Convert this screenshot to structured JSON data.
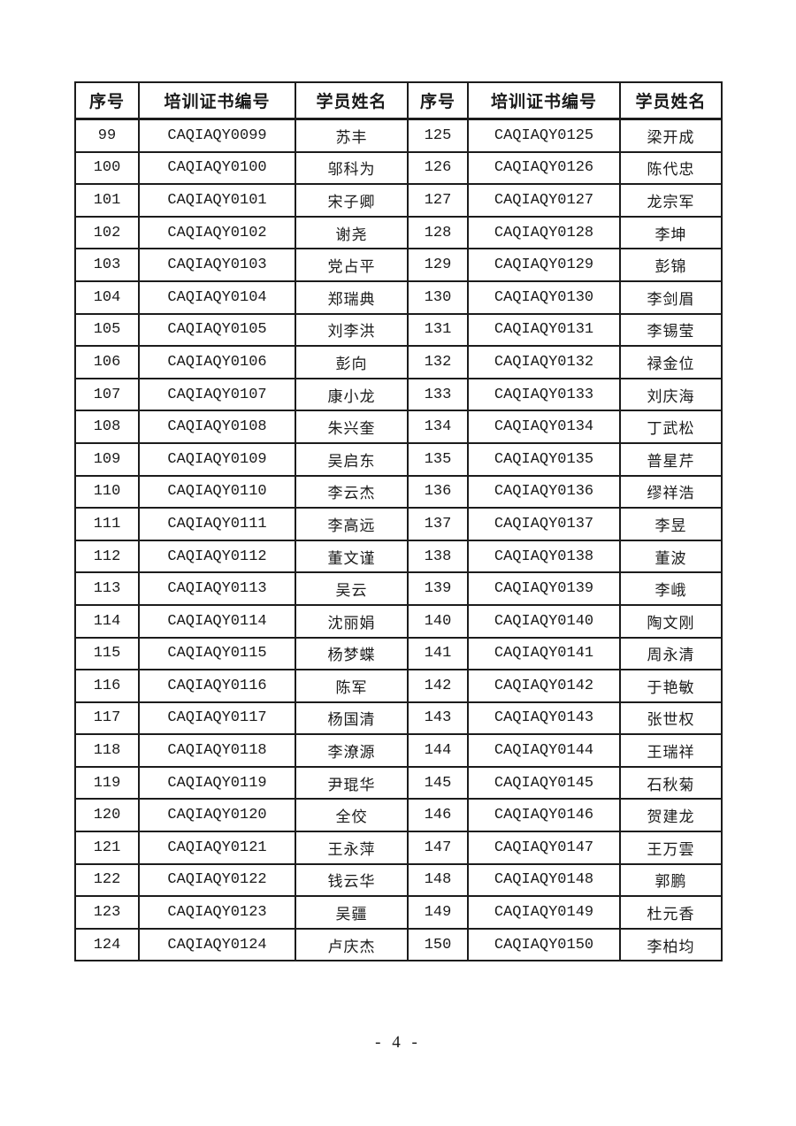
{
  "page": {
    "footer_label": "- 4 -"
  },
  "table": {
    "headers": [
      "序号",
      "培训证书编号",
      "学员姓名",
      "序号",
      "培训证书编号",
      "学员姓名"
    ],
    "column_kinds": [
      "serial",
      "cert",
      "name",
      "serial",
      "cert",
      "name"
    ],
    "rows": [
      [
        "99",
        "CAQIAQY0099",
        "苏丰",
        "125",
        "CAQIAQY0125",
        "梁开成"
      ],
      [
        "100",
        "CAQIAQY0100",
        "邬科为",
        "126",
        "CAQIAQY0126",
        "陈代忠"
      ],
      [
        "101",
        "CAQIAQY0101",
        "宋子卿",
        "127",
        "CAQIAQY0127",
        "龙宗军"
      ],
      [
        "102",
        "CAQIAQY0102",
        "谢尧",
        "128",
        "CAQIAQY0128",
        "李坤"
      ],
      [
        "103",
        "CAQIAQY0103",
        "党占平",
        "129",
        "CAQIAQY0129",
        "彭锦"
      ],
      [
        "104",
        "CAQIAQY0104",
        "郑瑞典",
        "130",
        "CAQIAQY0130",
        "李剑眉"
      ],
      [
        "105",
        "CAQIAQY0105",
        "刘李洪",
        "131",
        "CAQIAQY0131",
        "李锡莹"
      ],
      [
        "106",
        "CAQIAQY0106",
        "彭向",
        "132",
        "CAQIAQY0132",
        "禄金位"
      ],
      [
        "107",
        "CAQIAQY0107",
        "康小龙",
        "133",
        "CAQIAQY0133",
        "刘庆海"
      ],
      [
        "108",
        "CAQIAQY0108",
        "朱兴奎",
        "134",
        "CAQIAQY0134",
        "丁武松"
      ],
      [
        "109",
        "CAQIAQY0109",
        "吴启东",
        "135",
        "CAQIAQY0135",
        "普星芹"
      ],
      [
        "110",
        "CAQIAQY0110",
        "李云杰",
        "136",
        "CAQIAQY0136",
        "缪祥浩"
      ],
      [
        "111",
        "CAQIAQY0111",
        "李高远",
        "137",
        "CAQIAQY0137",
        "李昱"
      ],
      [
        "112",
        "CAQIAQY0112",
        "董文谨",
        "138",
        "CAQIAQY0138",
        "董波"
      ],
      [
        "113",
        "CAQIAQY0113",
        "吴云",
        "139",
        "CAQIAQY0139",
        "李峨"
      ],
      [
        "114",
        "CAQIAQY0114",
        "沈丽娟",
        "140",
        "CAQIAQY0140",
        "陶文刚"
      ],
      [
        "115",
        "CAQIAQY0115",
        "杨梦蝶",
        "141",
        "CAQIAQY0141",
        "周永清"
      ],
      [
        "116",
        "CAQIAQY0116",
        "陈军",
        "142",
        "CAQIAQY0142",
        "于艳敏"
      ],
      [
        "117",
        "CAQIAQY0117",
        "杨国清",
        "143",
        "CAQIAQY0143",
        "张世权"
      ],
      [
        "118",
        "CAQIAQY0118",
        "李潦源",
        "144",
        "CAQIAQY0144",
        "王瑞祥"
      ],
      [
        "119",
        "CAQIAQY0119",
        "尹琨华",
        "145",
        "CAQIAQY0145",
        "石秋菊"
      ],
      [
        "120",
        "CAQIAQY0120",
        "全佼",
        "146",
        "CAQIAQY0146",
        "贺建龙"
      ],
      [
        "121",
        "CAQIAQY0121",
        "王永萍",
        "147",
        "CAQIAQY0147",
        "王万雲"
      ],
      [
        "122",
        "CAQIAQY0122",
        "钱云华",
        "148",
        "CAQIAQY0148",
        "郭鹏"
      ],
      [
        "123",
        "CAQIAQY0123",
        "吴疆",
        "149",
        "CAQIAQY0149",
        "杜元香"
      ],
      [
        "124",
        "CAQIAQY0124",
        "卢庆杰",
        "150",
        "CAQIAQY0150",
        "李柏均"
      ]
    ]
  }
}
